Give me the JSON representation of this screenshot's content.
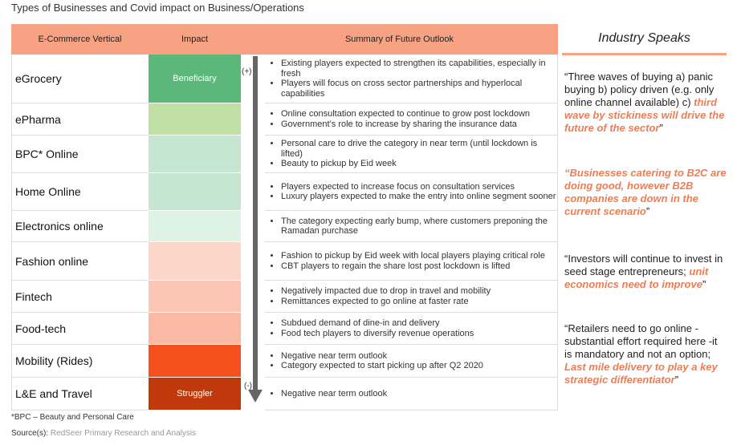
{
  "title": "Types of Businesses and Covid impact on Business/Operations",
  "table": {
    "headers": [
      "E-Commerce Vertical",
      "Impact",
      "Summary of Future Outlook"
    ],
    "rows": [
      {
        "vertical": "eGrocery",
        "impact": {
          "label": "Beneficiary",
          "color": "#5cb87a"
        },
        "summary": [
          "Existing players expected to strengthen its capabilities, especially in fresh",
          "Players will focus on cross sector partnerships and hyperlocal capabilities"
        ]
      },
      {
        "vertical": "ePharma",
        "impact": {
          "color": "#c1e0a6"
        },
        "summary": [
          "Online consultation expected to continue to grow post lockdown",
          "Government’s role to increase by sharing the insurance data"
        ]
      },
      {
        "vertical": "BPC* Online",
        "impact": {
          "color": "#c6e6d2"
        },
        "summary": [
          "Personal care to drive the category in near term (until lockdown is lifted)",
          "Beauty to pickup by Eid week"
        ]
      },
      {
        "vertical": "Home Online",
        "impact": {
          "color": "#c6e6d2"
        },
        "summary": [
          "Players expected to increase focus on consultation services",
          "Luxury players expected to make the entry into online segment sooner"
        ]
      },
      {
        "vertical": "Electronics online",
        "impact": {
          "color": "#dff2e6"
        },
        "summary": [
          "The category expecting early bump, where customers preponing the Ramadan purchase"
        ]
      },
      {
        "vertical": "Fashion online",
        "impact": {
          "color": "#fdd6ca"
        },
        "summary": [
          "Fashion to pickup by Eid week with local players playing critical role",
          "CBT players to regain the share lost post lockdown is lifted"
        ]
      },
      {
        "vertical": "Fintech",
        "impact": {
          "color": "#fcc6b4"
        },
        "summary": [
          "Negatively impacted due to drop in travel and mobility",
          "Remittances expected to go online at faster rate"
        ]
      },
      {
        "vertical": "Food-tech",
        "impact": {
          "color": "#fbbaa5"
        },
        "summary": [
          "Subdued demand of dine-in and delivery",
          "Food tech players to diversify revenue operations"
        ]
      },
      {
        "vertical": "Mobility (Rides)",
        "impact": {
          "color": "#f4511e"
        },
        "summary": [
          "Negative near term outlook",
          "Category expected to start picking up after Q2 2020"
        ]
      },
      {
        "vertical": "L&E and Travel",
        "impact": {
          "label": "Struggler",
          "color": "#c0390b"
        },
        "summary": [
          "Negative near term outlook"
        ]
      }
    ],
    "arrow": {
      "top": "(+)",
      "bottom": "(-)"
    }
  },
  "industry": {
    "title": "Industry Speaks",
    "quotes": [
      [
        {
          "text": "“Three waves of buying a) panic buying b) policy driven (e.g. only online channel available) c) ",
          "highlight": false
        },
        {
          "text": "third wave by stickiness will drive the future of the sector",
          "highlight": true
        },
        {
          "text": "”",
          "highlight": false
        }
      ],
      [
        {
          "text": "“Businesses catering to B2C are doing good, however B2B companies are down in the current scenario",
          "highlight": true
        },
        {
          "text": "”",
          "highlight": false
        }
      ],
      [
        {
          "text": "“Investors will continue to invest in seed stage entrepreneurs; ",
          "highlight": false
        },
        {
          "text": "unit economics need to improve",
          "highlight": true
        },
        {
          "text": "”",
          "highlight": false
        }
      ],
      [
        {
          "text": "“Retailers need to go online - substantial effort required here -it is mandatory and not an option; ",
          "highlight": false
        },
        {
          "text": "Last mile delivery to play a key strategic differentiator",
          "highlight": true
        },
        {
          "text": "”",
          "highlight": false
        }
      ]
    ]
  },
  "footnote": "*BPC – Beauty and Personal Care",
  "source": {
    "label": "Source(s):",
    "text": "RedSeer Primary Research and Analysis"
  }
}
